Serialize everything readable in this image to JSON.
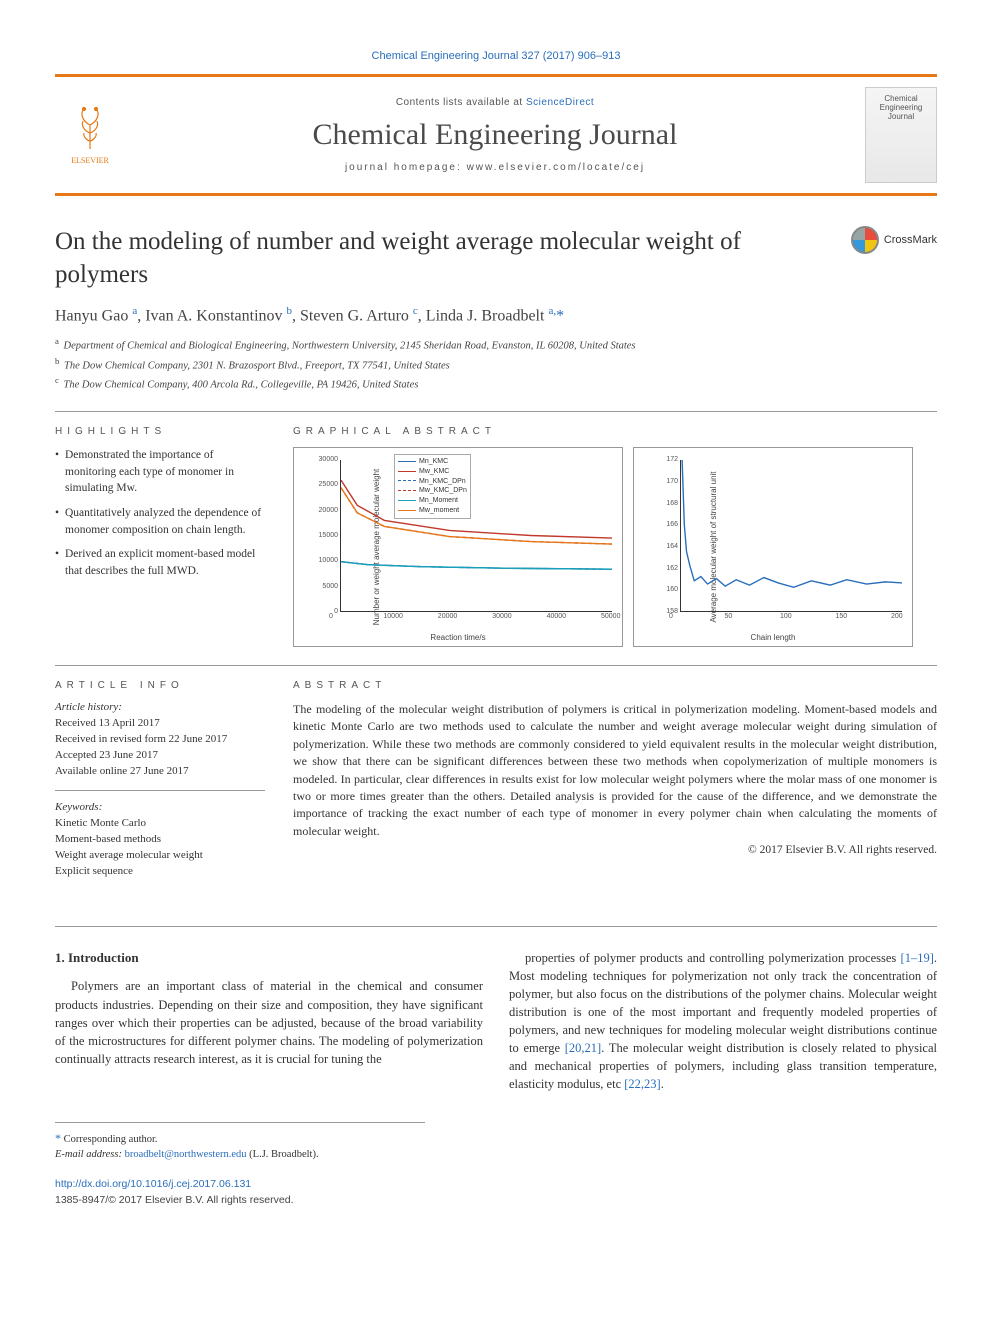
{
  "citation": "Chemical Engineering Journal 327 (2017) 906–913",
  "header": {
    "publisher": "ELSEVIER",
    "contents_prefix": "Contents lists available at ",
    "contents_link": "ScienceDirect",
    "journal_name": "Chemical Engineering Journal",
    "homepage_prefix": "journal homepage: ",
    "homepage_url": "www.elsevier.com/locate/cej",
    "cover_text_1": "Chemical",
    "cover_text_2": "Engineering",
    "cover_text_3": "Journal"
  },
  "article": {
    "title": "On the modeling of number and weight average molecular weight of polymers",
    "crossmark_label": "CrossMark"
  },
  "authors_html": "Hanyu Gao <sup>a</sup>, Ivan A. Konstantinov <sup>b</sup>, Steven G. Arturo <sup>c</sup>, Linda J. Broadbelt <sup>a,</sup><span class='star'>*</span>",
  "affiliations": {
    "a": "Department of Chemical and Biological Engineering, Northwestern University, 2145 Sheridan Road, Evanston, IL 60208, United States",
    "b": "The Dow Chemical Company, 2301 N. Brazosport Blvd., Freeport, TX 77541, United States",
    "c": "The Dow Chemical Company, 400 Arcola Rd., Collegeville, PA 19426, United States"
  },
  "section_labels": {
    "highlights": "HIGHLIGHTS",
    "graphical_abstract": "GRAPHICAL ABSTRACT",
    "article_info": "ARTICLE INFO",
    "abstract": "ABSTRACT"
  },
  "highlights": [
    "Demonstrated the importance of monitoring each type of monomer in simulating Mw.",
    "Quantitatively analyzed the dependence of monomer composition on chain length.",
    "Derived an explicit moment-based model that describes the full MWD."
  ],
  "graphical_abstract": {
    "chart1": {
      "type": "line",
      "x_label": "Reaction time/s",
      "y_label": "Number or weight average molecular weight",
      "xlim": [
        0,
        50000
      ],
      "xtick_step": 10000,
      "ylim": [
        0,
        30000
      ],
      "ytick_step": 5000,
      "legend": [
        "Mn_KMC",
        "Mw_KMC",
        "Mn_KMC_DPn",
        "Mw_KMC_DPn",
        "Mn_Moment",
        "Mw_moment"
      ],
      "legend_colors": [
        "#2a6ebb",
        "#c0392b",
        "#2a6ebb",
        "#c0392b",
        "#17a2b8",
        "#e67817"
      ],
      "legend_dash": [
        "solid",
        "solid",
        "dash",
        "dash",
        "solid",
        "solid"
      ],
      "series": {
        "mn_kmc": {
          "color": "#2a6ebb",
          "dash": "solid",
          "points": [
            [
              0,
              9800
            ],
            [
              5000,
              9200
            ],
            [
              15000,
              8800
            ],
            [
              30000,
              8500
            ],
            [
              50000,
              8300
            ]
          ]
        },
        "mw_kmc": {
          "color": "#c0392b",
          "dash": "solid",
          "points": [
            [
              0,
              26000
            ],
            [
              3000,
              21000
            ],
            [
              8000,
              18000
            ],
            [
              20000,
              16000
            ],
            [
              35000,
              15000
            ],
            [
              50000,
              14500
            ]
          ]
        },
        "mn_kmc_dpn": {
          "color": "#2a6ebb",
          "dash": "dash",
          "points": [
            [
              0,
              9800
            ],
            [
              5000,
              9200
            ],
            [
              15000,
              8800
            ],
            [
              30000,
              8500
            ],
            [
              50000,
              8300
            ]
          ]
        },
        "mw_kmc_dpn": {
          "color": "#c0392b",
          "dash": "dash",
          "points": [
            [
              0,
              24500
            ],
            [
              3000,
              19500
            ],
            [
              8000,
              16800
            ],
            [
              20000,
              14800
            ],
            [
              35000,
              13800
            ],
            [
              50000,
              13300
            ]
          ]
        },
        "mn_moment": {
          "color": "#17a2b8",
          "dash": "solid",
          "points": [
            [
              0,
              9800
            ],
            [
              5000,
              9200
            ],
            [
              15000,
              8800
            ],
            [
              30000,
              8500
            ],
            [
              50000,
              8300
            ]
          ]
        },
        "mw_moment": {
          "color": "#e67817",
          "dash": "solid",
          "points": [
            [
              0,
              24500
            ],
            [
              3000,
              19500
            ],
            [
              8000,
              16800
            ],
            [
              20000,
              14800
            ],
            [
              35000,
              13800
            ],
            [
              50000,
              13300
            ]
          ]
        }
      },
      "background_color": "#ffffff",
      "axis_color": "#333333",
      "label_fontsize": 8
    },
    "chart2": {
      "type": "line",
      "x_label": "Chain length",
      "y_label": "Average molecular weight of structural unit",
      "xlim": [
        0,
        200
      ],
      "xtick_step": 50,
      "ylim": [
        158,
        172
      ],
      "ytick_step": 2,
      "series": {
        "avg_mw": {
          "color": "#2a6ebb",
          "dash": "solid",
          "points": [
            [
              1,
              172
            ],
            [
              3,
              166
            ],
            [
              5,
              163.5
            ],
            [
              8,
              162.2
            ],
            [
              12,
              160.8
            ],
            [
              18,
              161.2
            ],
            [
              24,
              160.5
            ],
            [
              32,
              161.0
            ],
            [
              40,
              160.3
            ],
            [
              50,
              160.9
            ],
            [
              62,
              160.4
            ],
            [
              75,
              161.1
            ],
            [
              88,
              160.6
            ],
            [
              102,
              160.2
            ],
            [
              118,
              160.8
            ],
            [
              135,
              160.4
            ],
            [
              150,
              160.9
            ],
            [
              168,
              160.5
            ],
            [
              185,
              160.7
            ],
            [
              200,
              160.6
            ]
          ]
        }
      },
      "background_color": "#ffffff",
      "axis_color": "#333333",
      "label_fontsize": 8
    }
  },
  "article_info": {
    "history_label": "Article history:",
    "history": [
      "Received 13 April 2017",
      "Received in revised form 22 June 2017",
      "Accepted 23 June 2017",
      "Available online 27 June 2017"
    ],
    "keywords_label": "Keywords:",
    "keywords": [
      "Kinetic Monte Carlo",
      "Moment-based methods",
      "Weight average molecular weight",
      "Explicit sequence"
    ]
  },
  "abstract": "The modeling of the molecular weight distribution of polymers is critical in polymerization modeling. Moment-based models and kinetic Monte Carlo are two methods used to calculate the number and weight average molecular weight during simulation of polymerization. While these two methods are commonly considered to yield equivalent results in the molecular weight distribution, we show that there can be significant differences between these two methods when copolymerization of multiple monomers is modeled. In particular, clear differences in results exist for low molecular weight polymers where the molar mass of one monomer is two or more times greater than the others. Detailed analysis is provided for the cause of the difference, and we demonstrate the importance of tracking the exact number of each type of monomer in every polymer chain when calculating the moments of molecular weight.",
  "abstract_copyright": "© 2017 Elsevier B.V. All rights reserved.",
  "body": {
    "section_number": "1.",
    "section_title": "Introduction",
    "para1": "Polymers are an important class of material in the chemical and consumer products industries. Depending on their size and composition, they have significant ranges over which their properties can be adjusted, because of the broad variability of the microstructures for different polymer chains. The modeling of polymerization continually attracts research interest, as it is crucial for tuning the",
    "para2_pre": "properties of polymer products and controlling polymerization processes ",
    "ref1": "[1–19]",
    "para2_mid": ". Most modeling techniques for polymerization not only track the concentration of polymer, but also focus on the distributions of the polymer chains. Molecular weight distribution is one of the most important and frequently modeled properties of polymers, and new techniques for modeling molecular weight distributions continue to emerge ",
    "ref2": "[20,21]",
    "para2_mid2": ". The molecular weight distribution is closely related to physical and mechanical properties of polymers, including glass transition temperature, elasticity modulus, etc ",
    "ref3": "[22,23]",
    "para2_end": "."
  },
  "footnotes": {
    "corresponding": "Corresponding author.",
    "email_label": "E-mail address: ",
    "email": "broadbelt@northwestern.edu",
    "email_name": " (L.J. Broadbelt)."
  },
  "footer": {
    "doi": "http://dx.doi.org/10.1016/j.cej.2017.06.131",
    "issn_line": "1385-8947/© 2017 Elsevier B.V. All rights reserved."
  }
}
